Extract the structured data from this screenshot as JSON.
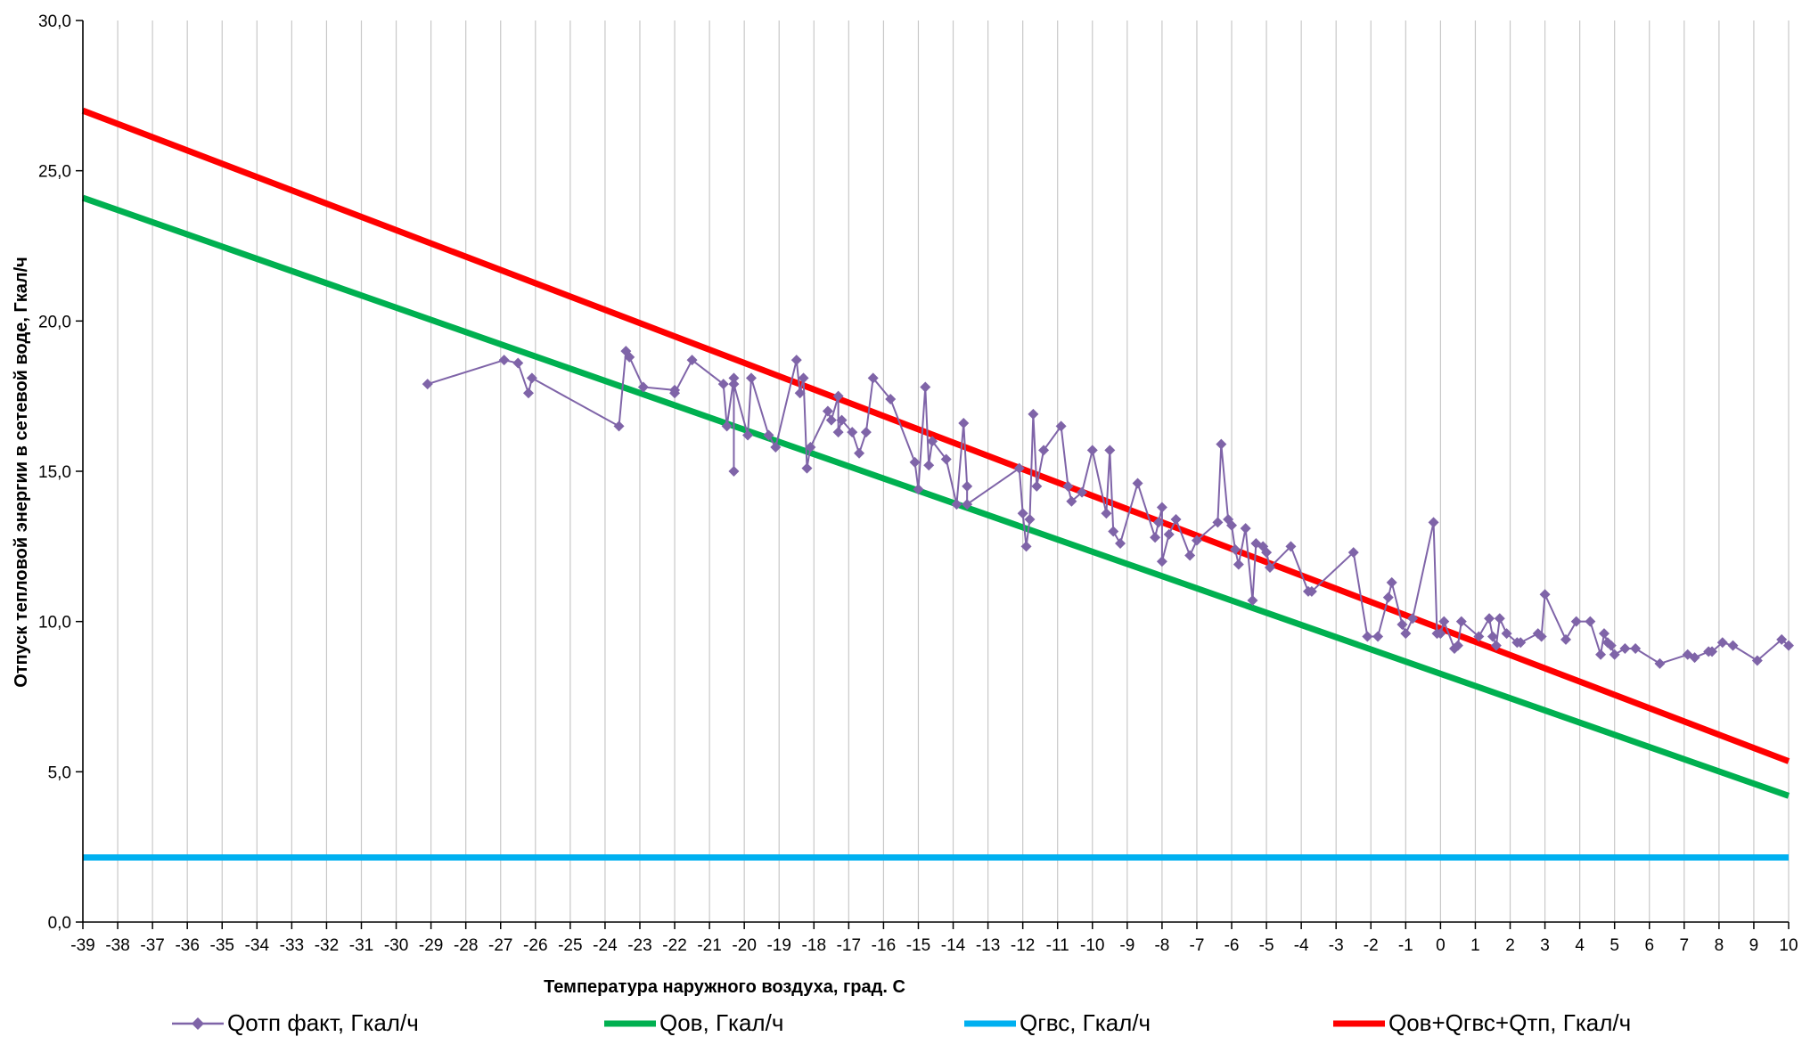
{
  "chart_data": {
    "type": "line",
    "xlabel": "Температура наружного воздуха, град. С",
    "ylabel": "Отпуск тепловой энергии в сетевой воде, Гкал/ч",
    "xlim": [
      -39,
      10
    ],
    "ylim": [
      0,
      30
    ],
    "x_ticks": [
      "-39",
      "-38",
      "-37",
      "-36",
      "-35",
      "-34",
      "-33",
      "-32",
      "-31",
      "-30",
      "-29",
      "-28",
      "-27",
      "-26",
      "-25",
      "-24",
      "-23",
      "-22",
      "-21",
      "-20",
      "-19",
      "-18",
      "-17",
      "-16",
      "-15",
      "-14",
      "-13",
      "-12",
      "-11",
      "-10",
      "-9",
      "-8",
      "-7",
      "-6",
      "-5",
      "-4",
      "-3",
      "-2",
      "-1",
      "0",
      "1",
      "2",
      "3",
      "4",
      "5",
      "6",
      "7",
      "8",
      "9",
      "10"
    ],
    "y_ticks": [
      "0,0",
      "5,0",
      "10,0",
      "15,0",
      "20,0",
      "25,0",
      "30,0"
    ],
    "grid": {
      "vertical": true,
      "horizontal": false
    },
    "legend_position": "bottom",
    "series": [
      {
        "name": "Qотп факт, Гкал/ч",
        "kind": "line-markers",
        "color": "#7f64a8",
        "x": [
          -29.1,
          -26.9,
          -26.5,
          -26.2,
          -26.1,
          -23.6,
          -23.4,
          -23.3,
          -22.9,
          -22.0,
          -22.0,
          -21.5,
          -20.6,
          -20.5,
          -20.3,
          -20.3,
          -20.3,
          -19.9,
          -19.8,
          -19.3,
          -19.1,
          -18.5,
          -18.4,
          -18.3,
          -18.2,
          -18.1,
          -17.6,
          -17.5,
          -17.3,
          -17.3,
          -17.2,
          -16.9,
          -16.7,
          -16.5,
          -16.3,
          -15.8,
          -15.1,
          -15.0,
          -14.8,
          -14.7,
          -14.6,
          -14.2,
          -13.9,
          -13.7,
          -13.6,
          -13.6,
          -12.1,
          -12.0,
          -11.9,
          -11.8,
          -11.7,
          -11.6,
          -11.4,
          -10.9,
          -10.7,
          -10.6,
          -10.3,
          -10.0,
          -9.6,
          -9.5,
          -9.4,
          -9.2,
          -8.7,
          -8.2,
          -8.1,
          -8.0,
          -8.0,
          -7.8,
          -7.6,
          -7.2,
          -7.0,
          -6.4,
          -6.3,
          -6.1,
          -6.0,
          -5.9,
          -5.8,
          -5.6,
          -5.4,
          -5.3,
          -5.1,
          -5.0,
          -4.9,
          -4.3,
          -3.8,
          -3.7,
          -2.5,
          -2.1,
          -1.8,
          -1.5,
          -1.4,
          -1.1,
          -1.0,
          -0.8,
          -0.2,
          -0.1,
          0.0,
          0.1,
          0.4,
          0.5,
          0.6,
          1.1,
          1.4,
          1.5,
          1.6,
          1.7,
          1.9,
          2.2,
          2.3,
          2.8,
          2.9,
          3.0,
          3.6,
          3.9,
          4.3,
          4.6,
          4.7,
          4.8,
          4.9,
          5.0,
          5.3,
          5.6,
          6.3,
          7.1,
          7.3,
          7.7,
          7.8,
          8.1,
          8.4,
          9.1,
          9.8,
          10.0
        ],
        "y": [
          17.9,
          18.7,
          18.6,
          17.6,
          18.1,
          16.5,
          19.0,
          18.8,
          17.8,
          17.7,
          17.6,
          18.7,
          17.9,
          16.5,
          18.1,
          15.0,
          17.9,
          16.2,
          18.1,
          16.2,
          15.8,
          18.7,
          17.6,
          18.1,
          15.1,
          15.8,
          17.0,
          16.7,
          17.5,
          16.3,
          16.7,
          16.3,
          15.6,
          16.3,
          18.1,
          17.4,
          15.3,
          14.4,
          17.8,
          15.2,
          16.0,
          15.4,
          13.9,
          16.6,
          14.5,
          13.9,
          15.1,
          13.6,
          12.5,
          13.4,
          16.9,
          14.5,
          15.7,
          16.5,
          14.5,
          14.0,
          14.3,
          15.7,
          13.6,
          15.7,
          13.0,
          12.6,
          14.6,
          12.8,
          13.3,
          13.8,
          12.0,
          12.9,
          13.4,
          12.2,
          12.7,
          13.3,
          15.9,
          13.4,
          13.2,
          12.4,
          11.9,
          13.1,
          10.7,
          12.6,
          12.5,
          12.3,
          11.8,
          12.5,
          11.0,
          11.0,
          12.3,
          9.5,
          9.5,
          10.8,
          11.3,
          9.9,
          9.6,
          10.1,
          13.3,
          9.6,
          9.6,
          10.0,
          9.1,
          9.2,
          10.0,
          9.5,
          10.1,
          9.5,
          9.2,
          10.1,
          9.6,
          9.3,
          9.3,
          9.6,
          9.5,
          10.9,
          9.4,
          10.0,
          10.0,
          8.9,
          9.6,
          9.3,
          9.2,
          8.9,
          9.1,
          9.1,
          8.6,
          8.9,
          8.8,
          9.0,
          9.0,
          9.3,
          9.2,
          8.7,
          9.4,
          9.2
        ]
      },
      {
        "name": "Qов, Гкал/ч",
        "kind": "line",
        "color": "#00b050",
        "x": [
          -39,
          10
        ],
        "y": [
          24.1,
          4.2
        ]
      },
      {
        "name": "Qгвс, Гкал/ч",
        "kind": "line",
        "color": "#00b0f0",
        "x": [
          -39,
          10
        ],
        "y": [
          2.15,
          2.15
        ]
      },
      {
        "name": "Qов+Qгвс+Qтп, Гкал/ч",
        "kind": "line",
        "color": "#ff0000",
        "x": [
          -39,
          10
        ],
        "y": [
          27.0,
          5.35
        ]
      }
    ]
  }
}
